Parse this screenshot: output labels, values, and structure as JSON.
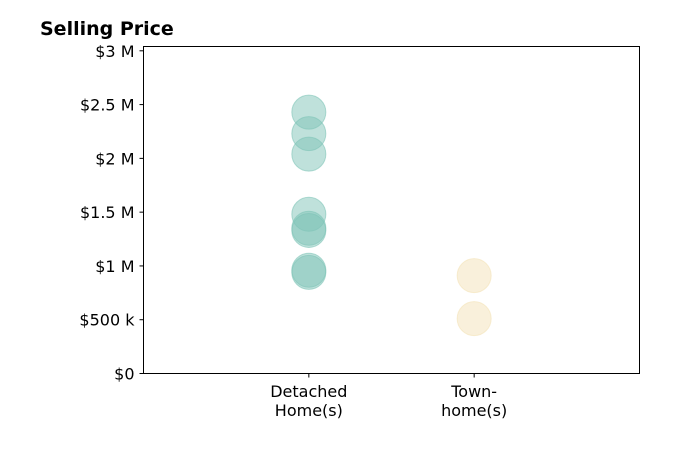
{
  "chart_data": {
    "type": "scatter",
    "title": "Selling Price",
    "xlabel": "",
    "ylabel": "",
    "categories": [
      [
        "Detached",
        "Home(s)"
      ],
      [
        "Town-",
        "home(s)"
      ]
    ],
    "series": [
      {
        "category_index": 0,
        "color": "#7fc4b8",
        "values": [
          2430000,
          2230000,
          2040000,
          1480000,
          1350000,
          1330000,
          960000,
          940000
        ]
      },
      {
        "category_index": 1,
        "color": "#f3e2b8",
        "values": [
          910000,
          510000
        ]
      }
    ],
    "ylim": [
      0,
      3040000
    ],
    "yticks": [
      0,
      500000,
      1000000,
      1500000,
      2000000,
      2500000,
      3000000
    ],
    "ytick_labels": [
      "$0",
      "$500 k",
      "$1 M",
      "$1.5 M",
      "$2 M",
      "$2.5 M",
      "$3 M"
    ],
    "xlim": [
      -1,
      2
    ],
    "grid": false,
    "legend": "none"
  }
}
